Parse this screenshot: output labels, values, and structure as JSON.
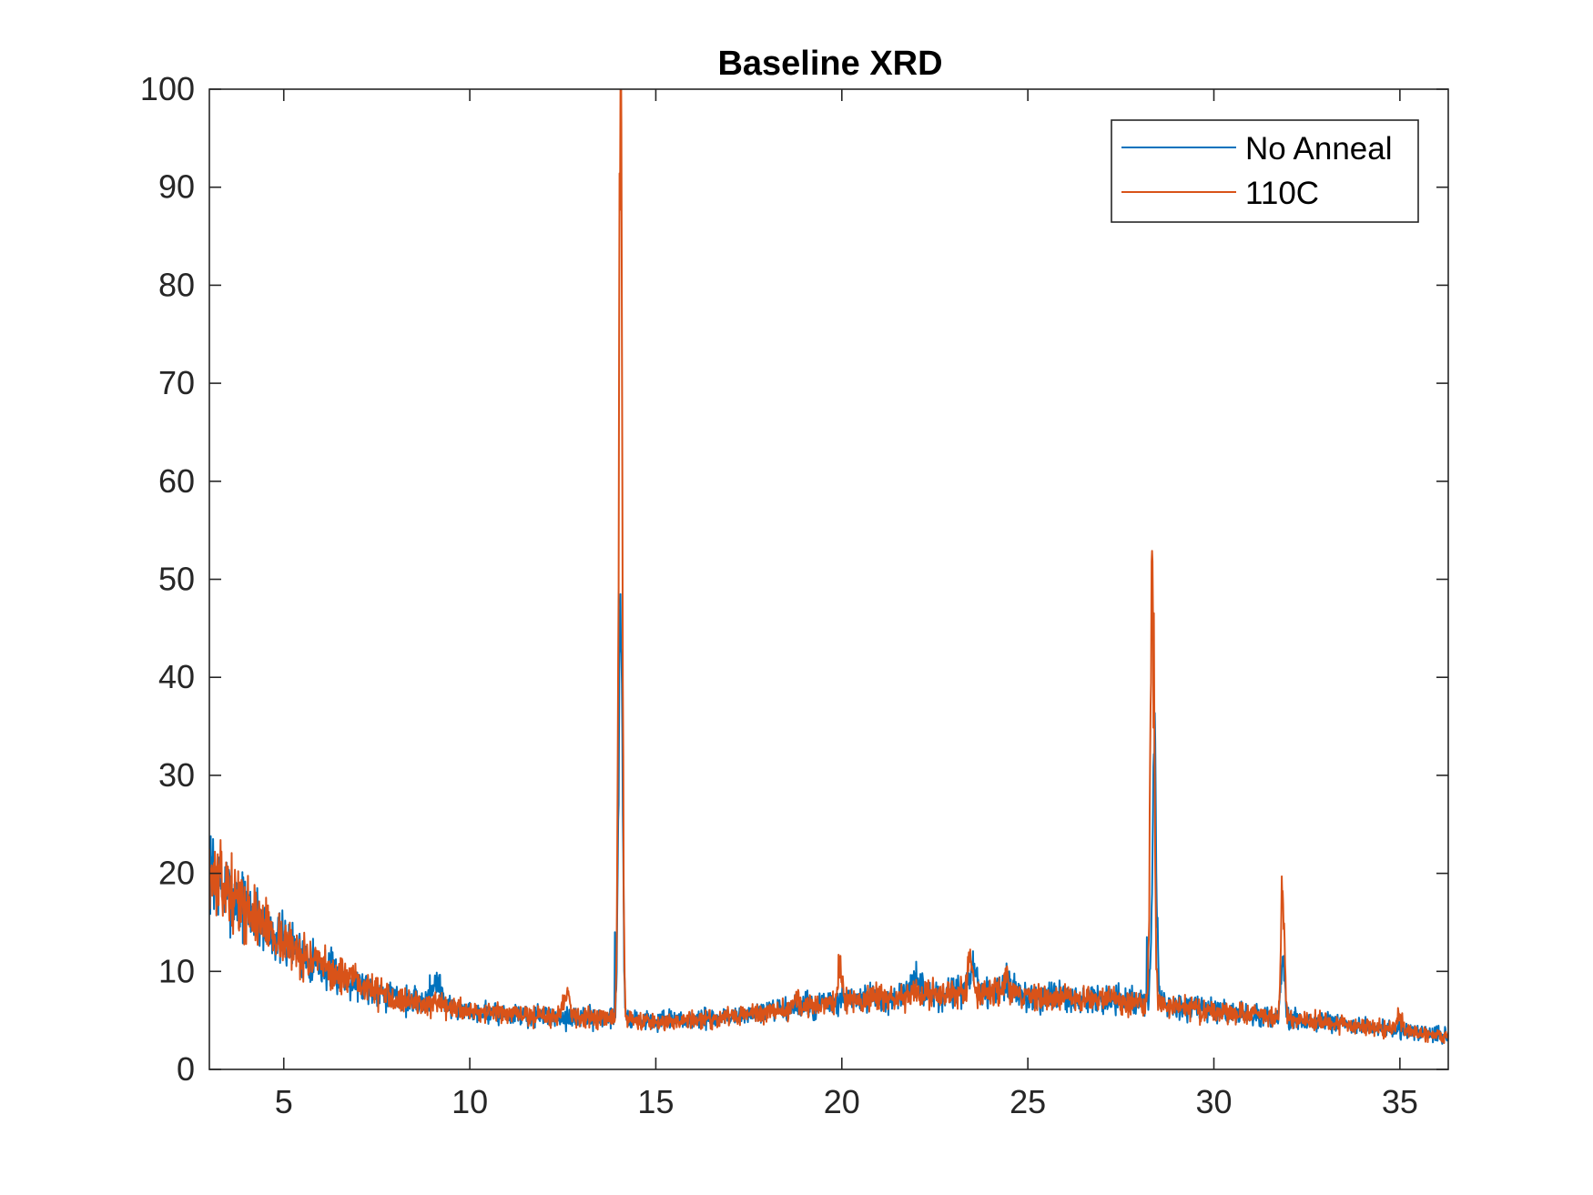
{
  "chart_data": {
    "type": "line",
    "title": "Baseline XRD",
    "xlabel": "",
    "ylabel": "",
    "xlim": [
      3,
      36.3
    ],
    "ylim": [
      0,
      100
    ],
    "x_ticks": [
      5,
      10,
      15,
      20,
      25,
      30,
      35
    ],
    "y_ticks": [
      0,
      10,
      20,
      30,
      40,
      50,
      60,
      70,
      80,
      90,
      100
    ],
    "grid": false,
    "legend_position": "top-right",
    "baseline": [
      [
        3,
        20
      ],
      [
        4,
        16.5
      ],
      [
        5,
        13
      ],
      [
        6,
        10.5
      ],
      [
        7,
        8.8
      ],
      [
        8,
        7.3
      ],
      [
        9,
        6.5
      ],
      [
        10,
        6
      ],
      [
        11,
        5.6
      ],
      [
        12,
        5.4
      ],
      [
        13,
        5.3
      ],
      [
        13.6,
        5.3
      ],
      [
        14.5,
        5
      ],
      [
        15,
        4.9
      ],
      [
        16,
        5
      ],
      [
        17,
        5.4
      ],
      [
        18,
        5.8
      ],
      [
        19,
        6.4
      ],
      [
        20,
        6.9
      ],
      [
        21,
        7.2
      ],
      [
        22,
        7.5
      ],
      [
        23,
        7.8
      ],
      [
        24,
        7.9
      ],
      [
        25,
        7.6
      ],
      [
        26,
        7.3
      ],
      [
        27,
        7.1
      ],
      [
        28,
        6.9
      ],
      [
        29,
        6.4
      ],
      [
        30,
        6
      ],
      [
        31,
        5.6
      ],
      [
        32,
        5.2
      ],
      [
        33,
        4.8
      ],
      [
        34,
        4.4
      ],
      [
        35,
        4
      ],
      [
        36.3,
        3.4
      ]
    ],
    "series": [
      {
        "name": "No Anneal",
        "color": "#0072BD",
        "noise": 1.4,
        "seed": 7,
        "peaks": [
          [
            9.1,
            2.5,
            0.15
          ],
          [
            14.05,
            44,
            0.05
          ],
          [
            22,
            1.8,
            0.1
          ],
          [
            23.5,
            2.2,
            0.1
          ],
          [
            24.4,
            1.5,
            0.1
          ],
          [
            28.4,
            26,
            0.055
          ],
          [
            31.85,
            6,
            0.05
          ]
        ],
        "points": [
          [
            3,
            21
          ],
          [
            3.1,
            23.5
          ],
          [
            13.9,
            14
          ],
          [
            14.05,
            48.5
          ],
          [
            14.25,
            6
          ],
          [
            28.2,
            13.5
          ],
          [
            28.4,
            32.2
          ],
          [
            28.6,
            8
          ],
          [
            31.85,
            11.5
          ]
        ]
      },
      {
        "name": "110C",
        "color": "#D95319",
        "noise": 1.3,
        "seed": 13,
        "peaks": [
          [
            12.6,
            2.5,
            0.1
          ],
          [
            14.05,
            93,
            0.045
          ],
          [
            18.8,
            1.5,
            0.05
          ],
          [
            19.95,
            4.2,
            0.05
          ],
          [
            23.45,
            4.5,
            0.05
          ],
          [
            24.4,
            2.5,
            0.05
          ],
          [
            28.35,
            45,
            0.05
          ],
          [
            31.85,
            13,
            0.045
          ],
          [
            35,
            1.6,
            0.05
          ]
        ],
        "points": [
          [
            3,
            22.5
          ],
          [
            14.05,
            99.5
          ],
          [
            28.35,
            51.8
          ],
          [
            31.85,
            18.2
          ]
        ]
      }
    ]
  }
}
